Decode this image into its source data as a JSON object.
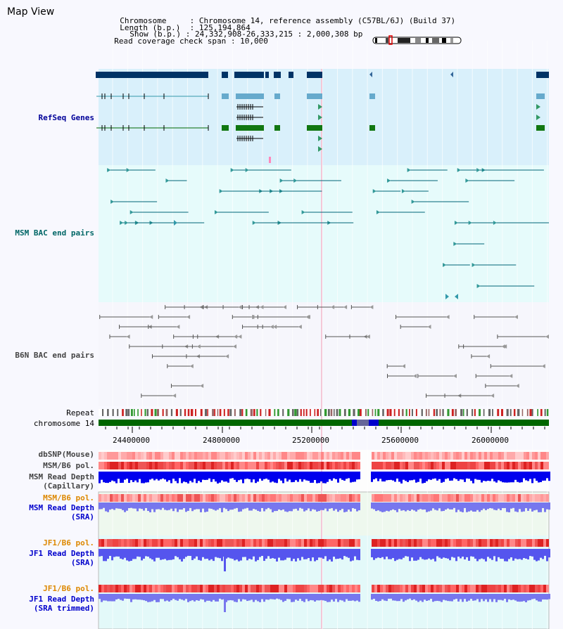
{
  "title": "Map View",
  "info": {
    "chromosome_label": "Chromosome",
    "chromosome_value": "Chromosome 14, reference assembly (C57BL/6J) (Build 37)",
    "length_label": "Length (b.p.)",
    "length_value": "125,194,864",
    "show_label": "Show (b.p.)",
    "show_value": "24,332,908-26,333,215 : 2,000,308 bp",
    "coverage_label": "Read coverage check span",
    "coverage_value": "10,000"
  },
  "tracks": {
    "refseq": "RefSeq Genes",
    "msm_bac": "MSM BAC end pairs",
    "b6n_bac": "B6N BAC end pairs",
    "repeat": "Repeat",
    "chromosome": "chromosome 14",
    "dbsnp": "dbSNP(Mouse)",
    "msm_b6_pol_1": "MSM/B6 pol.",
    "msm_depth_cap_1": "MSM Read Depth",
    "msm_depth_cap_2": "(Capillary)",
    "msm_b6_pol_2": "MSM/B6 pol.",
    "msm_depth_sra_1": "MSM Read Depth",
    "msm_depth_sra_2": "(SRA)",
    "jf1_b6_pol_1": "JF1/B6 pol.",
    "jf1_depth_sra_1": "JF1 Read Depth",
    "jf1_depth_sra_2": "(SRA)",
    "jf1_b6_pol_2": "JF1/B6 pol.",
    "jf1_depth_trim_1": "JF1 Read Depth",
    "jf1_depth_trim_2": "(SRA trimmed)"
  },
  "axis": {
    "ticks": [
      "24400000",
      "24800000",
      "25200000",
      "25600000",
      "26000000"
    ]
  },
  "colors": {
    "refseq_label": "#000099",
    "msm_label": "#006666",
    "b6n_label": "#444444",
    "pol_label_orange": "#dd8800",
    "depth_label_blue": "#0000cc"
  }
}
